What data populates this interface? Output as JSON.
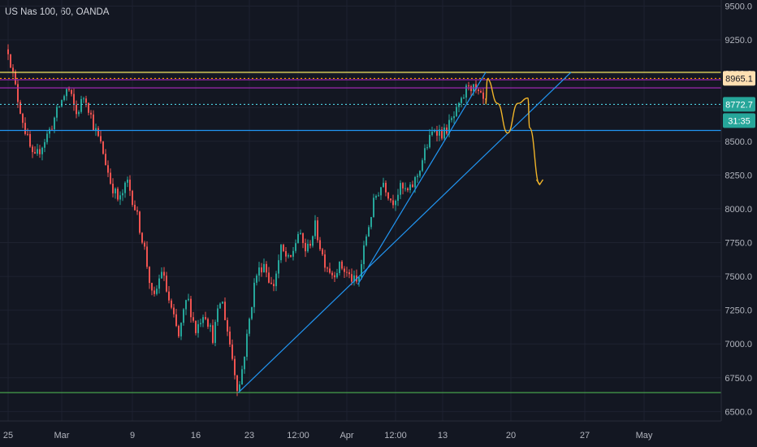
{
  "header": {
    "title": "US Nas 100, 60, OANDA"
  },
  "price_tags": {
    "level": "8965.1",
    "last": "8772.7",
    "countdown": "31:35"
  },
  "colors": {
    "background": "#131722",
    "axis_text": "#b2b5be",
    "up": "#26a69a",
    "down": "#ef5350",
    "trendline": "#2196f3",
    "yellow": "#f5e663",
    "purple": "#9c27b0",
    "green_line": "#4caf50",
    "dotted_cyan": "#4dd0e1",
    "dotted_orange": "#ff9800",
    "projection": "#f0b429",
    "last_tag": "#26a69a",
    "level_tag": "#ffe0b2"
  },
  "chart_data": {
    "type": "candlestick",
    "y_ticks": [
      9500,
      9250,
      9000,
      8750,
      8500,
      8250,
      8000,
      7750,
      7500,
      7250,
      7000,
      6750,
      6500
    ],
    "y_tick_labels": [
      "9500.0",
      "9250.0",
      "9000.0",
      "8750.0",
      "8500.0",
      "8250.0",
      "8000.0",
      "7750.0",
      "7500.0",
      "7250.0",
      "7000.0",
      "6750.0",
      "6500.0"
    ],
    "ylim": [
      6430,
      9545
    ],
    "x_labels": [
      "25",
      "Mar",
      "9",
      "16",
      "23",
      "12:00",
      "Apr",
      "12:00",
      "13",
      "20",
      "27",
      "May"
    ],
    "horizontal_levels": [
      {
        "price": 9010,
        "color": "yellow"
      },
      {
        "price": 8955,
        "color": "purple"
      },
      {
        "price": 8895,
        "color": "purple"
      },
      {
        "price": 8965.1,
        "color": "dotted_orange"
      },
      {
        "price": 8772.7,
        "color": "dotted_cyan"
      },
      {
        "price": 8580,
        "color": "trendline"
      },
      {
        "price": 6640,
        "color": "green_line"
      }
    ],
    "trendlines": [
      {
        "from": [
          "Mar 23",
          6640
        ],
        "to": [
          "May 1",
          9010
        ]
      },
      {
        "from": [
          "Apr 6",
          7440
        ],
        "to": [
          "Apr 21",
          9010
        ]
      }
    ],
    "price_path": [
      [
        "Feb 25",
        9180
      ],
      [
        "Feb 26",
        8850
      ],
      [
        "Feb 27",
        8580
      ],
      [
        "Feb 28",
        8350
      ],
      [
        "Mar 1",
        8600
      ],
      [
        "Mar 2",
        8760
      ],
      [
        "Mar 3",
        8900
      ],
      [
        "Mar 4",
        8700
      ],
      [
        "Mar 5",
        8850
      ],
      [
        "Mar 6",
        8620
      ],
      [
        "Mar 7",
        8450
      ],
      [
        "Mar 8",
        8200
      ],
      [
        "Mar 9",
        8050
      ],
      [
        "Mar 10",
        8200
      ],
      [
        "Mar 11",
        7980
      ],
      [
        "Mar 12",
        7700
      ],
      [
        "Mar 13",
        7300
      ],
      [
        "Mar 14",
        7550
      ],
      [
        "Mar 15",
        7280
      ],
      [
        "Mar 16",
        7050
      ],
      [
        "Mar 17",
        7350
      ],
      [
        "Mar 18",
        7100
      ],
      [
        "Mar 19",
        7250
      ],
      [
        "Mar 20",
        7050
      ],
      [
        "Mar 21",
        7350
      ],
      [
        "Mar 22",
        7000
      ],
      [
        "Mar 23",
        6640
      ],
      [
        "Mar 24",
        7050
      ],
      [
        "Mar 25",
        7500
      ],
      [
        "Mar 26",
        7600
      ],
      [
        "Mar 27",
        7400
      ],
      [
        "Mar 28",
        7700
      ],
      [
        "Mar 29",
        7600
      ],
      [
        "Mar 30",
        7820
      ],
      [
        "Mar 31",
        7680
      ],
      [
        "Apr 1",
        7870
      ],
      [
        "Apr 2",
        7620
      ],
      [
        "Apr 3",
        7520
      ],
      [
        "Apr 4",
        7580
      ],
      [
        "Apr 5",
        7500
      ],
      [
        "Apr 6",
        7440
      ],
      [
        "Apr 7",
        7800
      ],
      [
        "Apr 8",
        8080
      ],
      [
        "Apr 9",
        8200
      ],
      [
        "Apr 10",
        8050
      ],
      [
        "Apr 11",
        8150
      ],
      [
        "Apr 12",
        8120
      ],
      [
        "Apr 13",
        8250
      ],
      [
        "Apr 14",
        8450
      ],
      [
        "Apr 15",
        8600
      ],
      [
        "Apr 16",
        8550
      ],
      [
        "Apr 17",
        8650
      ],
      [
        "Apr 18",
        8760
      ],
      [
        "Apr 19",
        8930
      ],
      [
        "Apr 20",
        8850
      ],
      [
        "Apr 21",
        8772.7
      ]
    ],
    "projection_path": [
      [
        "Apr 21",
        8772.7
      ],
      [
        "Apr 21",
        8960
      ],
      [
        "Apr 22",
        8780
      ],
      [
        "Apr 23",
        8560
      ],
      [
        "Apr 24",
        8780
      ],
      [
        "Apr 25",
        8820
      ],
      [
        "Apr 25",
        8600
      ],
      [
        "Apr 26",
        8180
      ]
    ]
  }
}
